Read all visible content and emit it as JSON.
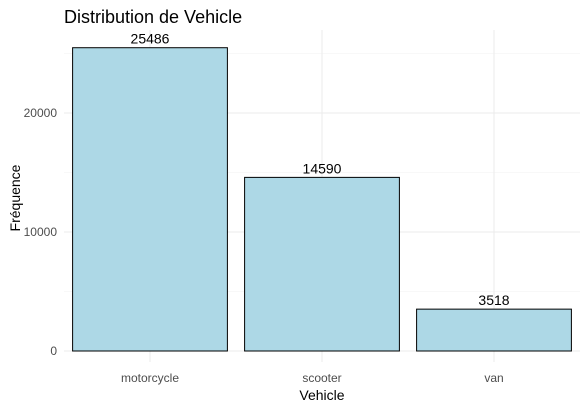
{
  "chart_data": {
    "type": "bar",
    "title": "Distribution de Vehicle",
    "xlabel": "Vehicle",
    "ylabel": "Fréquence",
    "categories": [
      "motorcycle",
      "scooter",
      "van"
    ],
    "values": [
      25486,
      14590,
      3518
    ],
    "data_labels": [
      "25486",
      "14590",
      "3518"
    ],
    "yticks": [
      0,
      10000,
      20000
    ],
    "ytick_labels": [
      "0",
      "10000",
      "20000"
    ],
    "ylim": [
      0,
      26760
    ],
    "grid": true,
    "bar_color": "#add8e6",
    "bar_edge_color": "#000000"
  }
}
